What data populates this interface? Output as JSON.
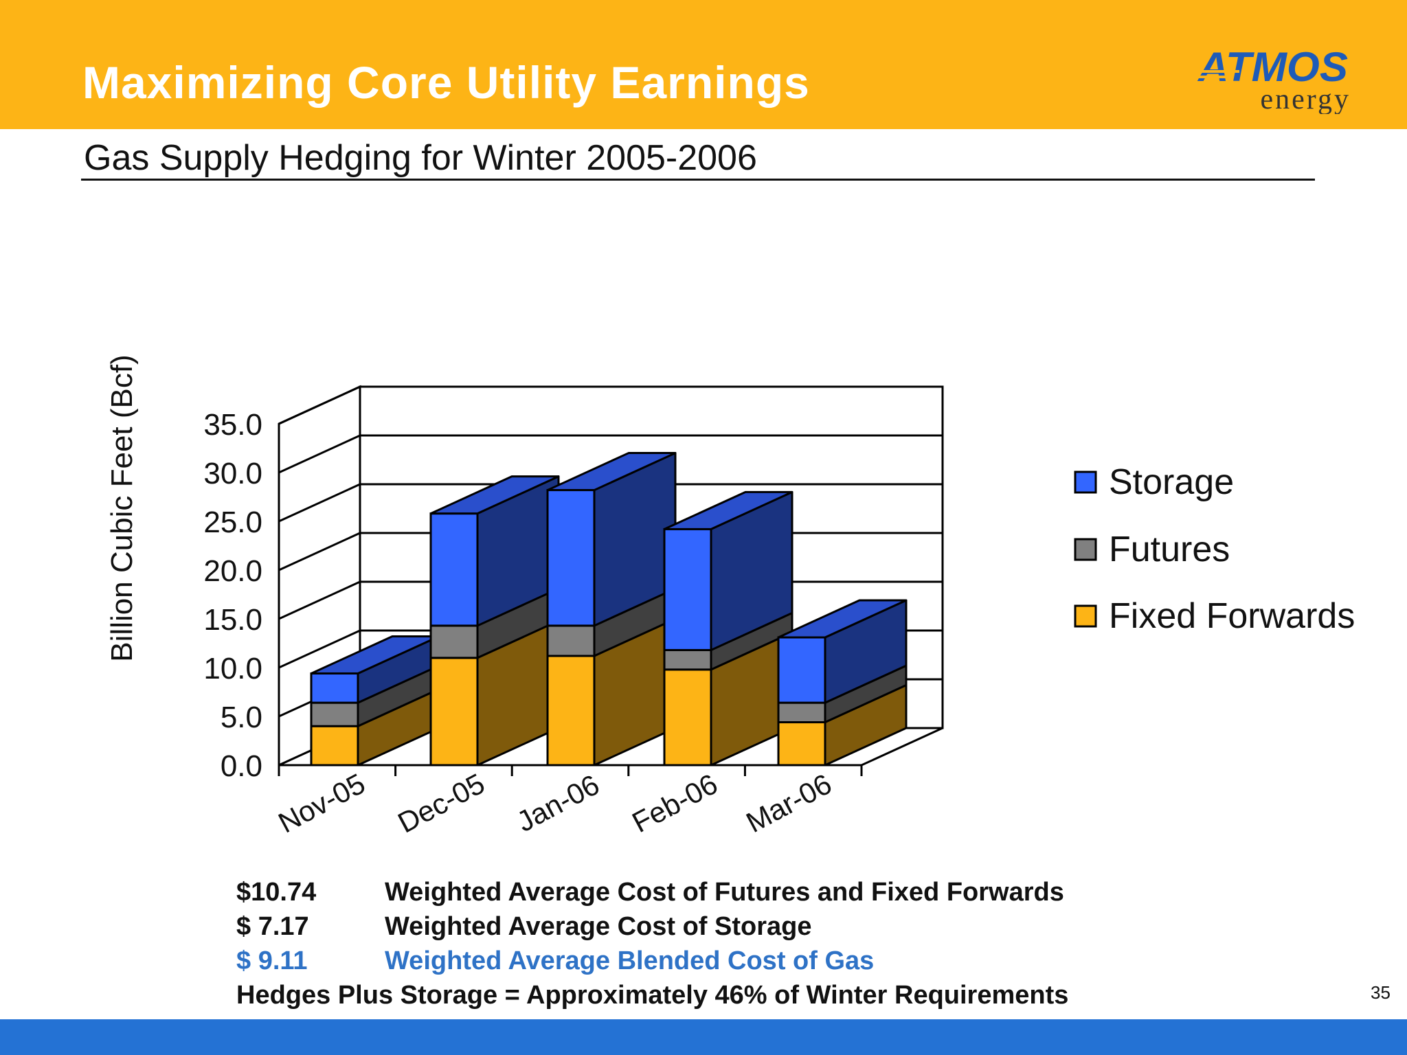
{
  "header": {
    "title": "Maximizing Core Utility Earnings",
    "logo_top": "ATMOS",
    "logo_bottom": "energy"
  },
  "subtitle": "Gas Supply Hedging for Winter 2005-2006",
  "colors": {
    "header_bg": "#FDB416",
    "storage": "#3366FF",
    "futures": "#808080",
    "fixed_forwards": "#FDB416",
    "highlight_text": "#2E72C6",
    "footer_bar": "#2472D4"
  },
  "chart_data": {
    "type": "bar",
    "stacked": true,
    "three_d": true,
    "title": "",
    "xlabel": "",
    "ylabel": "Billion Cubic Feet  (Bcf)",
    "ylim": [
      0,
      35
    ],
    "yticks": [
      "0.0",
      "5.0",
      "10.0",
      "15.0",
      "20.0",
      "25.0",
      "30.0",
      "35.0"
    ],
    "categories": [
      "Nov-05",
      "Dec-05",
      "Jan-06",
      "Feb-06",
      "Mar-06"
    ],
    "series": [
      {
        "name": "Fixed Forwards",
        "values": [
          4.0,
          11.0,
          11.2,
          9.8,
          4.4
        ]
      },
      {
        "name": "Futures",
        "values": [
          2.4,
          3.3,
          3.1,
          2.0,
          2.0
        ]
      },
      {
        "name": "Storage",
        "values": [
          3.0,
          11.5,
          13.9,
          12.4,
          6.7
        ]
      }
    ],
    "legend": [
      "Storage",
      "Futures",
      "Fixed Forwards"
    ],
    "legend_position": "right"
  },
  "notes": [
    {
      "amount": "$10.74",
      "text": "Weighted Average Cost of Futures and Fixed Forwards"
    },
    {
      "amount": "$  7.17",
      "text": "Weighted Average Cost of Storage"
    },
    {
      "amount": "$  9.11",
      "text": "Weighted Average Blended Cost of Gas"
    }
  ],
  "summary": "Hedges Plus Storage = Approximately 46% of Winter Requirements",
  "page_number": "35"
}
